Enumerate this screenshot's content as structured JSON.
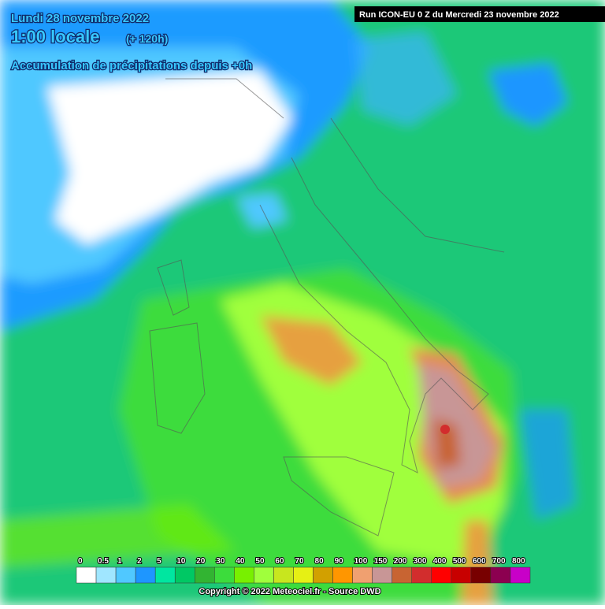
{
  "header": {
    "date": "Lundi 28 novembre 2022",
    "time": "1:00 locale",
    "lead": "(+ 120h)",
    "parameter": "Accumulation de précipitations depuis +0h",
    "run": "Run ICON-EU 0 Z du Mercredi 23 novembre 2022"
  },
  "legend": {
    "labels": [
      "0",
      "0.5",
      "1",
      "2",
      "5",
      "10",
      "20",
      "30",
      "40",
      "50",
      "60",
      "70",
      "80",
      "90",
      "100",
      "150",
      "200",
      "300",
      "400",
      "500",
      "600",
      "700",
      "800"
    ],
    "colors": [
      "#ffffff",
      "#a0e6ff",
      "#50c8ff",
      "#1e96ff",
      "#00e6a0",
      "#00c864",
      "#32b432",
      "#3cdc3c",
      "#78f000",
      "#a0ff3c",
      "#c8e61e",
      "#e6f014",
      "#d2a000",
      "#ff9600",
      "#f0a070",
      "#c89696",
      "#c86432",
      "#d22d2d",
      "#ff0000",
      "#c80000",
      "#780000",
      "#8c0050",
      "#c800c8"
    ]
  },
  "footer": {
    "copyright": "Copyright © 2022 Meteociel.fr - Source DWD"
  }
}
